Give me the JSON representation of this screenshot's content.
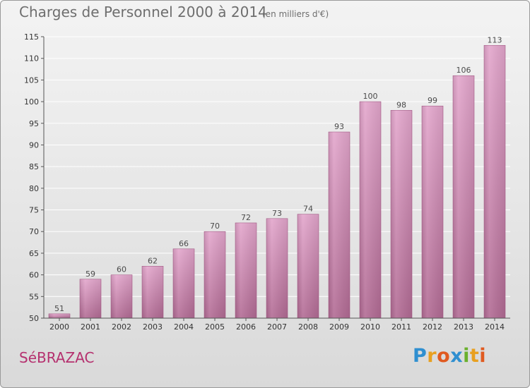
{
  "header": {
    "title": "Charges de Personnel 2000 à 2014",
    "subtitle": "(en milliers d'€)"
  },
  "footer": {
    "commune": "SéBRAZAC",
    "logo_letters": [
      "P",
      "r",
      "o",
      "x",
      "i",
      "t",
      "i"
    ],
    "logo_colors": [
      "#2f8fd0",
      "#e8a020",
      "#e05a20",
      "#2f8fd0",
      "#6ab02c",
      "#e8a020",
      "#e05a20"
    ]
  },
  "colors": {
    "bar_top": "#e3a6cc",
    "bar_bottom": "#b26b94",
    "axis": "#555555",
    "gridline": "#ffffff"
  },
  "chart_data": {
    "type": "bar",
    "categories": [
      "2000",
      "2001",
      "2002",
      "2003",
      "2004",
      "2005",
      "2006",
      "2007",
      "2008",
      "2009",
      "2010",
      "2011",
      "2012",
      "2013",
      "2014"
    ],
    "values": [
      51,
      59,
      60,
      62,
      66,
      70,
      72,
      73,
      74,
      93,
      100,
      98,
      99,
      106,
      113
    ],
    "title": "Charges de Personnel 2000 à 2014",
    "xlabel": "",
    "ylabel": "",
    "ylim": [
      50,
      115
    ],
    "yticks": [
      50,
      55,
      60,
      65,
      70,
      75,
      80,
      85,
      90,
      95,
      100,
      105,
      110,
      115
    ],
    "grid": true,
    "data_labels": true
  }
}
